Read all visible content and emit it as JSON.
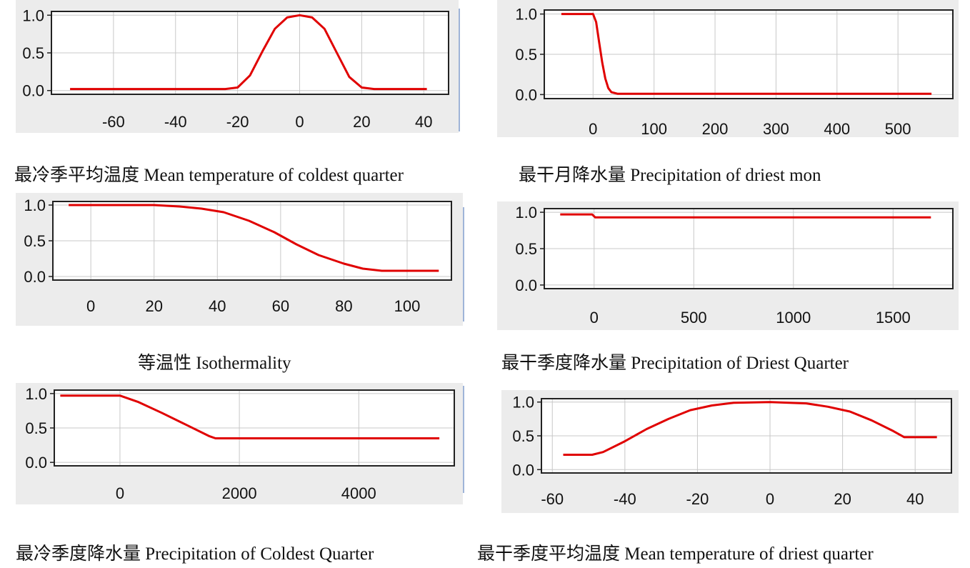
{
  "chart_data": [
    {
      "type": "line",
      "caption": "最冷季平均温度 Mean temperature of coldest quarter",
      "xticks": [
        -60,
        -40,
        -20,
        0,
        20,
        40
      ],
      "yticks": [
        "0.0",
        "0.5",
        "1.0"
      ],
      "xlim": [
        -80,
        48
      ],
      "ylim": [
        -0.05,
        1.05
      ],
      "series": [
        {
          "color": "#e00000",
          "points": [
            [
              -74,
              0.02
            ],
            [
              -24,
              0.02
            ],
            [
              -20,
              0.04
            ],
            [
              -16,
              0.2
            ],
            [
              -12,
              0.52
            ],
            [
              -8,
              0.82
            ],
            [
              -4,
              0.97
            ],
            [
              0,
              1.0
            ],
            [
              4,
              0.97
            ],
            [
              8,
              0.82
            ],
            [
              12,
              0.5
            ],
            [
              16,
              0.18
            ],
            [
              20,
              0.04
            ],
            [
              24,
              0.02
            ],
            [
              41,
              0.02
            ]
          ]
        }
      ]
    },
    {
      "type": "line",
      "caption": "最干月降水量 Precipitation of driest mon",
      "xticks": [
        0,
        100,
        200,
        300,
        400,
        500
      ],
      "yticks": [
        "0.0",
        "0.5",
        "1.0"
      ],
      "xlim": [
        -80,
        590
      ],
      "ylim": [
        -0.05,
        1.05
      ],
      "series": [
        {
          "color": "#e00000",
          "points": [
            [
              -52,
              1.0
            ],
            [
              0,
              1.0
            ],
            [
              5,
              0.9
            ],
            [
              10,
              0.65
            ],
            [
              15,
              0.4
            ],
            [
              20,
              0.2
            ],
            [
              25,
              0.08
            ],
            [
              30,
              0.03
            ],
            [
              40,
              0.01
            ],
            [
              555,
              0.01
            ]
          ]
        }
      ]
    },
    {
      "type": "line",
      "caption": "等温性 Isothermality",
      "xticks": [
        0,
        20,
        40,
        60,
        80,
        100
      ],
      "yticks": [
        "0.0",
        "0.5",
        "1.0"
      ],
      "xlim": [
        -12,
        114
      ],
      "ylim": [
        -0.05,
        1.05
      ],
      "series": [
        {
          "color": "#e00000",
          "points": [
            [
              -7,
              1.0
            ],
            [
              20,
              1.0
            ],
            [
              28,
              0.98
            ],
            [
              35,
              0.95
            ],
            [
              42,
              0.9
            ],
            [
              50,
              0.78
            ],
            [
              58,
              0.62
            ],
            [
              65,
              0.45
            ],
            [
              72,
              0.3
            ],
            [
              80,
              0.18
            ],
            [
              86,
              0.11
            ],
            [
              92,
              0.08
            ],
            [
              110,
              0.08
            ]
          ]
        }
      ]
    },
    {
      "type": "line",
      "caption": "最干季度降水量  Precipitation of Driest Quarter",
      "xticks": [
        0,
        500,
        1000,
        1500
      ],
      "yticks": [
        "0.0",
        "0.5",
        "1.0"
      ],
      "xlim": [
        -250,
        1800
      ],
      "ylim": [
        -0.05,
        1.05
      ],
      "series": [
        {
          "color": "#e00000",
          "points": [
            [
              -170,
              0.97
            ],
            [
              -10,
              0.97
            ],
            [
              5,
              0.93
            ],
            [
              1690,
              0.93
            ]
          ]
        }
      ]
    },
    {
      "type": "line",
      "caption": "最冷季度降水量  Precipitation of Coldest Quarter",
      "xticks": [
        0,
        2000,
        4000
      ],
      "yticks": [
        "0.0",
        "0.5",
        "1.0"
      ],
      "xlim": [
        -1100,
        5600
      ],
      "ylim": [
        -0.05,
        1.05
      ],
      "series": [
        {
          "color": "#e00000",
          "points": [
            [
              -1000,
              0.97
            ],
            [
              0,
              0.97
            ],
            [
              300,
              0.88
            ],
            [
              700,
              0.72
            ],
            [
              1100,
              0.55
            ],
            [
              1500,
              0.38
            ],
            [
              1600,
              0.35
            ],
            [
              5350,
              0.35
            ]
          ]
        }
      ]
    },
    {
      "type": "line",
      "caption": "最干季度平均温度 Mean temperature of driest quarter",
      "xticks": [
        -60,
        -40,
        -20,
        0,
        20,
        40
      ],
      "yticks": [
        "0.0",
        "0.5",
        "1.0"
      ],
      "xlim": [
        -63,
        50
      ],
      "ylim": [
        -0.05,
        1.05
      ],
      "series": [
        {
          "color": "#e00000",
          "points": [
            [
              -57,
              0.22
            ],
            [
              -49,
              0.22
            ],
            [
              -46,
              0.26
            ],
            [
              -40,
              0.42
            ],
            [
              -34,
              0.6
            ],
            [
              -28,
              0.75
            ],
            [
              -22,
              0.88
            ],
            [
              -16,
              0.95
            ],
            [
              -10,
              0.99
            ],
            [
              0,
              1.0
            ],
            [
              10,
              0.98
            ],
            [
              16,
              0.93
            ],
            [
              22,
              0.86
            ],
            [
              28,
              0.73
            ],
            [
              34,
              0.57
            ],
            [
              37,
              0.48
            ],
            [
              46,
              0.48
            ]
          ]
        }
      ]
    }
  ]
}
